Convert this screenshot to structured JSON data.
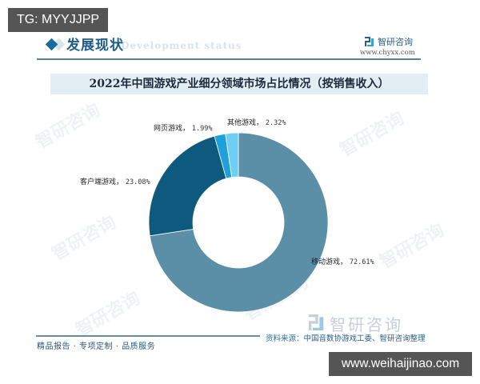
{
  "badges": {
    "top_left": "TG: MYYJJPP",
    "bottom_right": "www.weihaijinao.com"
  },
  "header": {
    "section_title": "发展现状",
    "section_subtitle": "Development status",
    "logo_name": "智研咨询",
    "logo_url": "www.chyxx.com"
  },
  "watermark": "智研咨询",
  "chart_data": {
    "type": "pie",
    "variant": "donut",
    "title": "2022年中国游戏产业细分领域市场占比情况（按销售收入）",
    "unit": "%",
    "legend": "none (labels beside slices)",
    "start_angle_deg": 0,
    "direction": "clockwise",
    "categories": [
      "移动游戏",
      "客户端游戏",
      "网页游戏",
      "其他游戏"
    ],
    "values": [
      72.61,
      23.08,
      1.99,
      2.32
    ],
    "labels": [
      "移动游戏，72.61%",
      "客户端游戏，23.08%",
      "网页游戏，1.99%",
      "其他游戏，2.32%"
    ],
    "colors": [
      "#5b8fa8",
      "#0d5a7e",
      "#1ea0d8",
      "#6fcff2"
    ]
  },
  "slices": [
    {
      "name": "移动游戏",
      "sep": "，",
      "pct": "72.61%"
    },
    {
      "name": "客户端游戏",
      "sep": "，",
      "pct": "23.08%"
    },
    {
      "name": "网页游戏",
      "sep": "，",
      "pct": "1.99%"
    },
    {
      "name": "其他游戏",
      "sep": "，",
      "pct": "2.32%"
    }
  ],
  "footer": {
    "tagline": "精品报告 · 专项定制 · 品质服务",
    "source_label": "资料来源：",
    "source_text": "中国音数协游戏工委、智研咨询整理",
    "logo_name": "智研咨询"
  }
}
